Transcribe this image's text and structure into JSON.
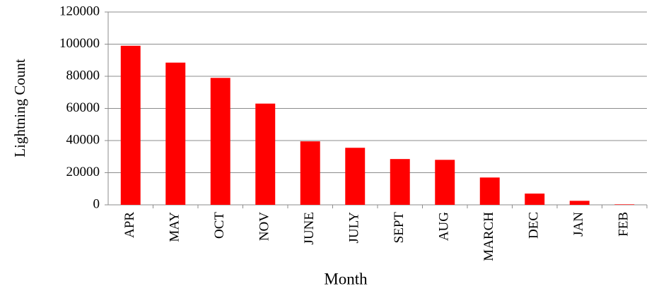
{
  "chart_data": {
    "type": "bar",
    "x_label": "Month",
    "y_label": "Lightning Count",
    "categories": [
      "APR",
      "MAY",
      "OCT",
      "NOV",
      "JUNE",
      "JULY",
      "SEPT",
      "AUG",
      "MARCH",
      "DEC",
      "JAN",
      "FEB"
    ],
    "values": [
      99000,
      88500,
      79000,
      63000,
      39500,
      35500,
      28500,
      28000,
      17000,
      7000,
      2500,
      300
    ],
    "color": "#ff0000",
    "ylim": [
      0,
      120000
    ],
    "yticks": [
      0,
      20000,
      40000,
      60000,
      80000,
      100000,
      120000
    ],
    "grid": true
  }
}
